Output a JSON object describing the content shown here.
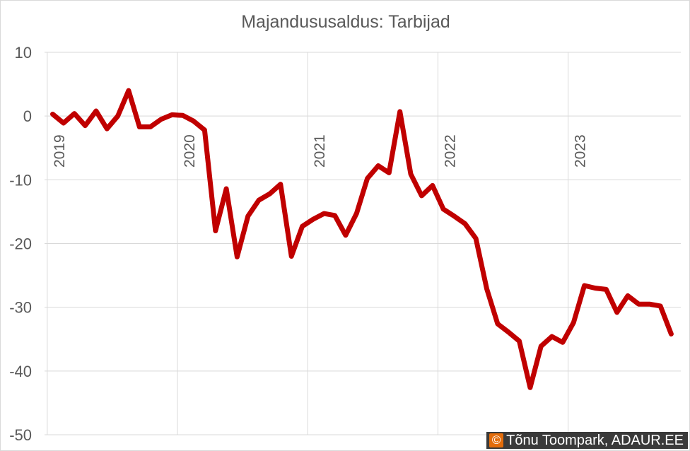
{
  "chart_data": {
    "type": "line",
    "title": "Majandususaldus: Tarbijad",
    "xlabel": "",
    "ylabel": "",
    "ylim": [
      -50,
      10
    ],
    "yticks": [
      10,
      0,
      -10,
      -20,
      -30,
      -40,
      -50
    ],
    "year_labels": [
      "2019",
      "2020",
      "2021",
      "2022",
      "2023"
    ],
    "x_start": "2019-01",
    "x": [
      "2019-01",
      "2019-02",
      "2019-03",
      "2019-04",
      "2019-05",
      "2019-06",
      "2019-07",
      "2019-08",
      "2019-09",
      "2019-10",
      "2019-11",
      "2019-12",
      "2020-01",
      "2020-02",
      "2020-03",
      "2020-04",
      "2020-05",
      "2020-06",
      "2020-07",
      "2020-08",
      "2020-09",
      "2020-10",
      "2020-11",
      "2020-12",
      "2021-01",
      "2021-02",
      "2021-03",
      "2021-04",
      "2021-05",
      "2021-06",
      "2021-07",
      "2021-08",
      "2021-09",
      "2021-10",
      "2021-11",
      "2021-12",
      "2022-01",
      "2022-02",
      "2022-03",
      "2022-04",
      "2022-05",
      "2022-06",
      "2022-07",
      "2022-08",
      "2022-09",
      "2022-10",
      "2022-11",
      "2022-12",
      "2023-01",
      "2023-02",
      "2023-03",
      "2023-04",
      "2023-05",
      "2023-06",
      "2023-07",
      "2023-08",
      "2023-09",
      "2023-10"
    ],
    "series": [
      {
        "color": "#c00000",
        "values": [
          0.3,
          -1.1,
          0.4,
          -1.5,
          0.8,
          -2.0,
          0.0,
          4.0,
          -1.7,
          -1.7,
          -0.5,
          0.2,
          0.1,
          -0.8,
          -2.2,
          -18.0,
          -11.4,
          -22.1,
          -15.7,
          -13.2,
          -12.2,
          -10.7,
          -22.0,
          -17.3,
          -16.2,
          -15.3,
          -15.6,
          -18.7,
          -15.3,
          -9.8,
          -7.8,
          -8.9,
          0.7,
          -9.1,
          -12.5,
          -10.9,
          -14.6,
          -15.7,
          -16.9,
          -19.2,
          -27.1,
          -32.6,
          -33.9,
          -35.3,
          -42.6,
          -36.1,
          -34.6,
          -35.5,
          -32.4,
          -26.6,
          -27.0,
          -27.2,
          -30.8,
          -28.2,
          -29.5,
          -29.5,
          -29.8,
          -34.2
        ]
      }
    ],
    "grid": true,
    "legend": "none"
  },
  "credit": {
    "icon": "copyright-icon",
    "symbol": "©",
    "text": "Tõnu Toompark, ADAUR.EE"
  }
}
